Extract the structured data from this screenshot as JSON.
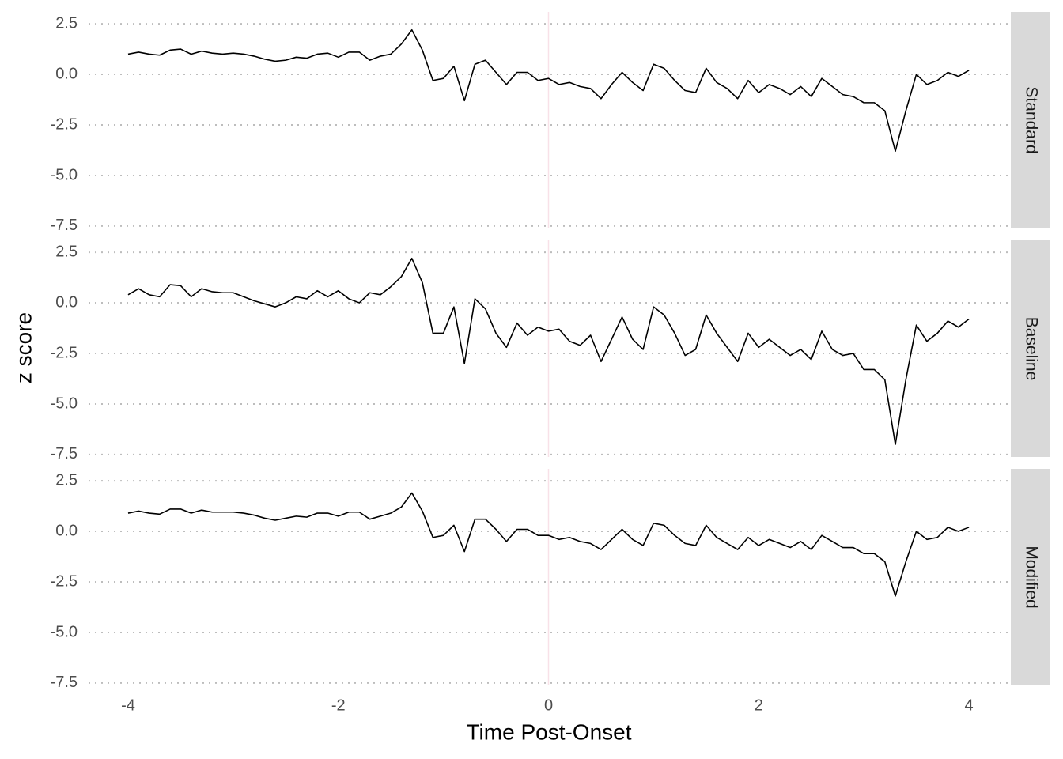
{
  "chart_data": {
    "type": "line",
    "x_label": "Time Post-Onset",
    "y_label": "z score",
    "xlim": [
      -4.376,
      4.376
    ],
    "xticks": [
      -4,
      -2,
      0,
      2,
      4
    ],
    "ylim": [
      -7.62,
      3.09
    ],
    "yticks": [
      {
        "value": 2.5,
        "label": "2.5"
      },
      {
        "value": 0,
        "label": "0.0"
      },
      -2.5,
      {
        "value": -5,
        "label": "-5.0"
      },
      -7.5
    ],
    "grid": "y",
    "vline": 0,
    "vline_color": "#f8e1e8",
    "x": [
      -4.0,
      -3.9,
      -3.8,
      -3.7,
      -3.6,
      -3.5,
      -3.4,
      -3.3,
      -3.2,
      -3.1,
      -3.0,
      -2.9,
      -2.8,
      -2.7,
      -2.6,
      -2.5,
      -2.4,
      -2.3,
      -2.2,
      -2.1,
      -2.0,
      -1.9,
      -1.8,
      -1.7,
      -1.6,
      -1.5,
      -1.4,
      -1.3,
      -1.2,
      -1.1,
      -1.0,
      -0.9,
      -0.8,
      -0.7,
      -0.6,
      -0.5,
      -0.4,
      -0.3,
      -0.2,
      -0.1,
      0.0,
      0.1,
      0.2,
      0.3,
      0.4,
      0.5,
      0.6,
      0.7,
      0.8,
      0.9,
      1.0,
      1.1,
      1.2,
      1.3,
      1.4,
      1.5,
      1.6,
      1.7,
      1.8,
      1.9,
      2.0,
      2.1,
      2.2,
      2.3,
      2.4,
      2.5,
      2.6,
      2.7,
      2.8,
      2.9,
      3.0,
      3.1,
      3.2,
      3.3,
      3.4,
      3.5,
      3.6,
      3.7,
      3.8,
      3.9,
      4.0
    ],
    "series": [
      {
        "name": "Standard",
        "color": "#000000",
        "values": [
          1.0,
          1.1,
          1.0,
          0.95,
          1.2,
          1.25,
          1.0,
          1.15,
          1.05,
          1.0,
          1.05,
          1.0,
          0.9,
          0.75,
          0.65,
          0.7,
          0.85,
          0.8,
          1.0,
          1.05,
          0.85,
          1.1,
          1.1,
          0.7,
          0.9,
          1.0,
          1.5,
          2.2,
          1.2,
          -0.3,
          -0.2,
          0.4,
          -1.3,
          0.5,
          0.7,
          0.1,
          -0.5,
          0.1,
          0.1,
          -0.3,
          -0.2,
          -0.5,
          -0.4,
          -0.6,
          -0.7,
          -1.2,
          -0.5,
          0.1,
          -0.4,
          -0.8,
          0.5,
          0.3,
          -0.3,
          -0.8,
          -0.9,
          0.3,
          -0.4,
          -0.7,
          -1.2,
          -0.3,
          -0.9,
          -0.5,
          -0.7,
          -1.0,
          -0.6,
          -1.1,
          -0.2,
          -0.6,
          -1.0,
          -1.1,
          -1.4,
          -1.4,
          -1.8,
          -3.8,
          -1.8,
          0.0,
          -0.5,
          -0.3,
          0.1,
          -0.1,
          0.2
        ]
      },
      {
        "name": "Baseline",
        "color": "#000000",
        "values": [
          0.4,
          0.7,
          0.4,
          0.3,
          0.9,
          0.85,
          0.3,
          0.7,
          0.55,
          0.5,
          0.5,
          0.3,
          0.1,
          -0.05,
          -0.2,
          0.0,
          0.3,
          0.2,
          0.6,
          0.3,
          0.6,
          0.2,
          0.0,
          0.5,
          0.4,
          0.8,
          1.3,
          2.2,
          1.0,
          -1.5,
          -1.5,
          -0.2,
          -3.0,
          0.2,
          -0.3,
          -1.5,
          -2.2,
          -1.0,
          -1.6,
          -1.2,
          -1.4,
          -1.3,
          -1.9,
          -2.1,
          -1.6,
          -2.9,
          -1.8,
          -0.7,
          -1.8,
          -2.3,
          -0.2,
          -0.6,
          -1.5,
          -2.6,
          -2.3,
          -0.6,
          -1.5,
          -2.2,
          -2.9,
          -1.5,
          -2.2,
          -1.8,
          -2.2,
          -2.6,
          -2.3,
          -2.8,
          -1.4,
          -2.3,
          -2.6,
          -2.5,
          -3.3,
          -3.3,
          -3.8,
          -7.0,
          -3.8,
          -1.1,
          -1.9,
          -1.5,
          -0.9,
          -1.2,
          -0.8
        ]
      },
      {
        "name": "Modified",
        "color": "#000000",
        "values": [
          0.9,
          1.0,
          0.9,
          0.85,
          1.1,
          1.1,
          0.9,
          1.05,
          0.95,
          0.95,
          0.95,
          0.9,
          0.8,
          0.65,
          0.55,
          0.65,
          0.75,
          0.7,
          0.9,
          0.9,
          0.75,
          0.95,
          0.95,
          0.6,
          0.75,
          0.9,
          1.2,
          1.9,
          1.0,
          -0.3,
          -0.2,
          0.3,
          -1.0,
          0.6,
          0.6,
          0.1,
          -0.5,
          0.1,
          0.1,
          -0.2,
          -0.2,
          -0.4,
          -0.3,
          -0.5,
          -0.6,
          -0.9,
          -0.4,
          0.1,
          -0.4,
          -0.7,
          0.4,
          0.3,
          -0.2,
          -0.6,
          -0.7,
          0.3,
          -0.3,
          -0.6,
          -0.9,
          -0.3,
          -0.7,
          -0.4,
          -0.6,
          -0.8,
          -0.5,
          -0.9,
          -0.2,
          -0.5,
          -0.8,
          -0.8,
          -1.1,
          -1.1,
          -1.5,
          -3.2,
          -1.5,
          0.0,
          -0.4,
          -0.3,
          0.2,
          0.0,
          0.2
        ]
      }
    ]
  }
}
